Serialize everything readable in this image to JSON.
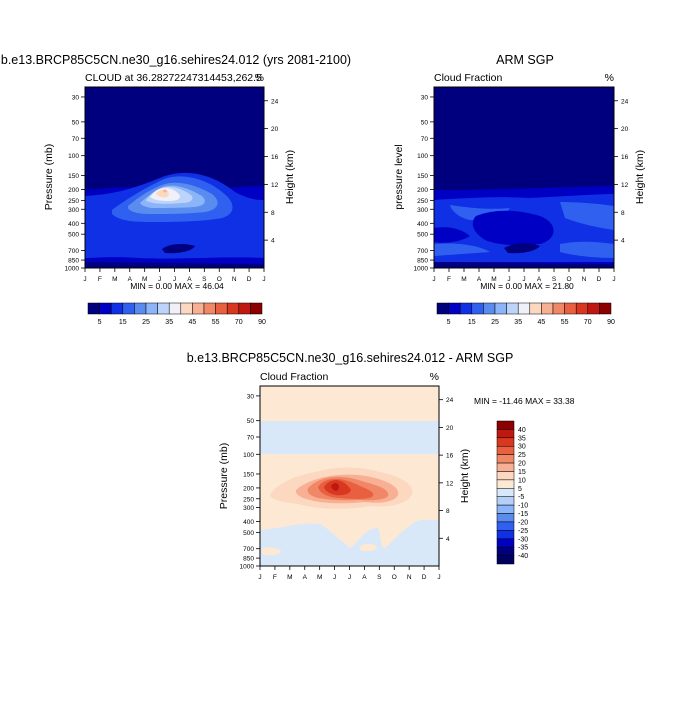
{
  "panels": {
    "model": {
      "title": "b.e13.BRCP85C5CN.ne30_g16.sehires24.012 (yrs 2081-2100)",
      "subtitle_left": "CLOUD at 36.28272247314453,262.5",
      "subtitle_right": "%",
      "ylabel": "Pressure (mb)",
      "y2label": "Height (km)",
      "minmax": "MIN =   0.00 MAX =  46.04"
    },
    "obs": {
      "title": "ARM SGP",
      "subtitle_left": "Cloud Fraction",
      "subtitle_right": "%",
      "ylabel": "pressure level",
      "y2label": "Height (km)",
      "minmax": "MIN =   0.00 MAX =  21.80"
    },
    "diff": {
      "title": "b.e13.BRCP85C5CN.ne30_g16.sehires24.012 - ARM SGP",
      "subtitle_left": "Cloud Fraction",
      "subtitle_right": "%",
      "ylabel": "Pressure (mb)",
      "y2label": "Height (km)",
      "minmax": "MIN = -11.46 MAX =  33.38"
    }
  },
  "colorbars": {
    "top_labels": [
      "5",
      "15",
      "25",
      "35",
      "45",
      "55",
      "70",
      "90"
    ],
    "top_colors": [
      "#00007f",
      "#0000c4",
      "#1030e6",
      "#3060f0",
      "#5a8cf0",
      "#8cb4f8",
      "#bcd4fa",
      "#f0f0f8",
      "#fcd8c0",
      "#f8b094",
      "#f08868",
      "#e86040",
      "#d83820",
      "#c01810",
      "#8c0000"
    ],
    "diff_labels": [
      "40",
      "35",
      "30",
      "25",
      "20",
      "15",
      "10",
      "5",
      "-5",
      "-10",
      "-15",
      "-20",
      "-25",
      "-30",
      "-35",
      "-40"
    ],
    "diff_colors": [
      "#8c0000",
      "#c01810",
      "#d83820",
      "#e86040",
      "#f08868",
      "#f8b094",
      "#fcd8c0",
      "#fde8d4",
      "#d8e8f8",
      "#b4d0f8",
      "#8cb4f8",
      "#5a8cf0",
      "#3060f0",
      "#1030e6",
      "#0000c4",
      "#00007f",
      "#000060"
    ]
  },
  "chart_data": [
    {
      "type": "heatmap",
      "title": "b.e13.BRCP85C5CN.ne30_g16.sehires24.012 (yrs 2081-2100)",
      "x_ticks": [
        "J",
        "F",
        "M",
        "A",
        "M",
        "J",
        "J",
        "A",
        "S",
        "O",
        "N",
        "D",
        "J"
      ],
      "y_ticks_pressure_mb": [
        30,
        50,
        70,
        100,
        150,
        200,
        250,
        300,
        400,
        500,
        700,
        850,
        1000
      ],
      "y2_ticks_height_km": [
        4,
        8,
        12,
        16,
        20,
        24
      ],
      "ylabel": "Pressure (mb)",
      "y2label": "Height (km)",
      "units": "%",
      "min": 0.0,
      "max": 46.04,
      "levels": [
        5,
        10,
        15,
        20,
        25,
        30,
        35,
        40,
        45,
        50,
        55,
        60,
        70,
        80,
        90
      ],
      "features": [
        {
          "description_from_image": "maximum near 200 mb in Jun",
          "value": 46.04
        }
      ]
    },
    {
      "type": "heatmap",
      "title": "ARM SGP",
      "x_ticks": [
        "J",
        "F",
        "M",
        "A",
        "M",
        "J",
        "J",
        "A",
        "S",
        "O",
        "N",
        "D",
        "J"
      ],
      "y_ticks_pressure_mb": [
        30,
        50,
        70,
        100,
        150,
        200,
        250,
        300,
        400,
        500,
        700,
        850,
        1000
      ],
      "y2_ticks_height_km": [
        4,
        8,
        12,
        16,
        20,
        24
      ],
      "ylabel": "pressure level",
      "y2label": "Height (km)",
      "units": "%",
      "min": 0.0,
      "max": 21.8,
      "levels": [
        5,
        10,
        15,
        20,
        25,
        30,
        35,
        40,
        45,
        50,
        55,
        60,
        70,
        80,
        90
      ]
    },
    {
      "type": "heatmap",
      "title": "b.e13.BRCP85C5CN.ne30_g16.sehires24.012 - ARM SGP",
      "x_ticks": [
        "J",
        "F",
        "M",
        "A",
        "M",
        "J",
        "J",
        "A",
        "S",
        "O",
        "N",
        "D",
        "J"
      ],
      "y_ticks_pressure_mb": [
        30,
        50,
        70,
        100,
        150,
        200,
        250,
        300,
        400,
        500,
        700,
        850,
        1000
      ],
      "y2_ticks_height_km": [
        4,
        8,
        12,
        16,
        20,
        24
      ],
      "ylabel": "Pressure (mb)",
      "y2label": "Height (km)",
      "units": "%",
      "min": -11.46,
      "max": 33.38,
      "levels": [
        -40,
        -35,
        -30,
        -25,
        -20,
        -15,
        -10,
        -5,
        5,
        10,
        15,
        20,
        25,
        30,
        35,
        40
      ]
    }
  ]
}
